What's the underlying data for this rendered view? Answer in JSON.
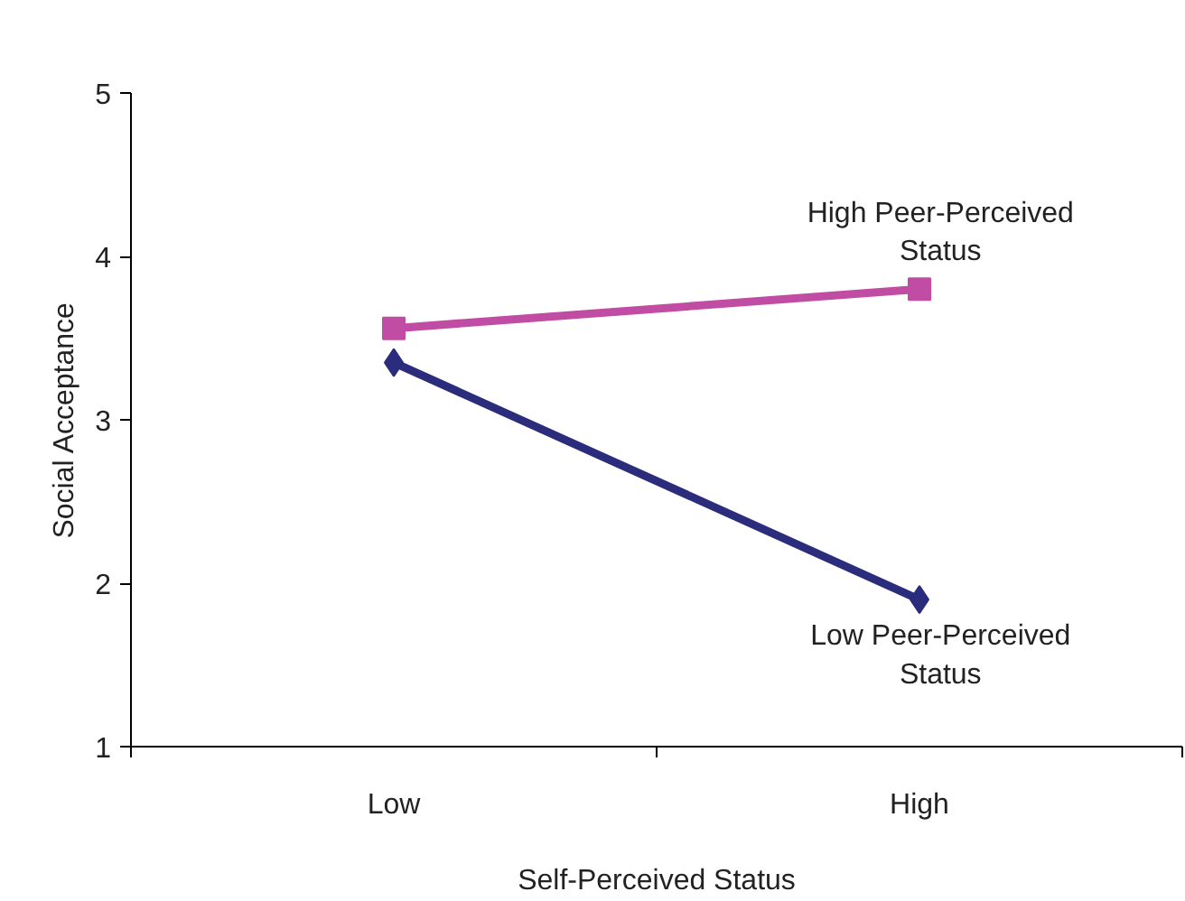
{
  "chart_data": {
    "type": "line",
    "xlabel": "Self-Perceived Status",
    "ylabel": "Social Acceptance",
    "categories": [
      "Low",
      "High"
    ],
    "series": [
      {
        "name": "High Peer-Perceived Status",
        "color": "#c04ca4",
        "values": [
          3.56,
          3.8
        ],
        "marker": "square"
      },
      {
        "name": "Low Peer-Perceived Status",
        "color": "#2b2c7c",
        "values": [
          3.35,
          1.9
        ],
        "marker": "diamond"
      }
    ],
    "ylim": [
      1,
      5
    ],
    "yticks": [
      1,
      2,
      3,
      4,
      5
    ],
    "grid": false,
    "legend": false
  }
}
